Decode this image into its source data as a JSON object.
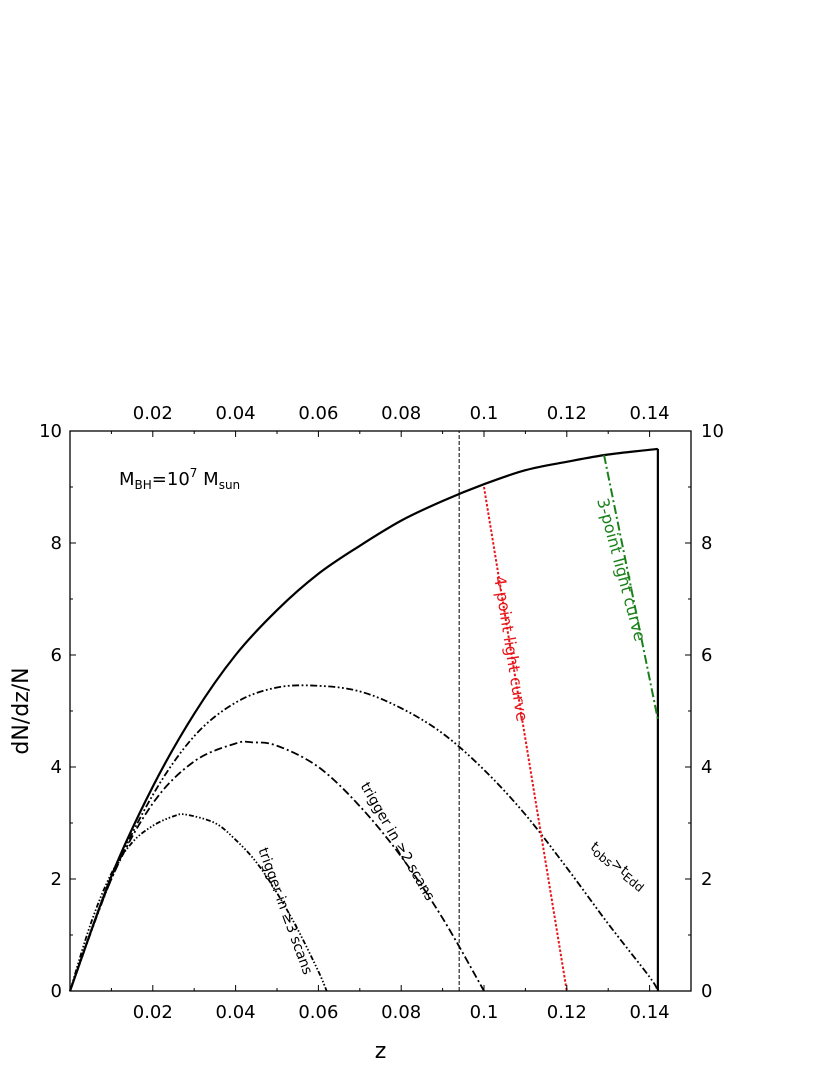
{
  "chart_data": {
    "type": "line",
    "title": "",
    "xlabel": "z",
    "ylabel": "dN/dz/N",
    "xlim": [
      0,
      0.15
    ],
    "ylim": [
      0,
      10
    ],
    "xticks": [
      0.02,
      0.04,
      0.06,
      0.08,
      0.1,
      0.12,
      0.14
    ],
    "xtick_labels": [
      "0.02",
      "0.04",
      "0.06",
      "0.08",
      "0.1",
      "0.12",
      "0.14"
    ],
    "yticks": [
      0,
      2,
      4,
      6,
      8,
      10
    ],
    "ytick_labels": [
      "0",
      "2",
      "4",
      "6",
      "8",
      "10"
    ],
    "top_xticks": [
      0.02,
      0.04,
      0.06,
      0.08,
      0.1,
      0.12,
      0.14
    ],
    "top_xtick_labels": [
      "0.02",
      "0.04",
      "0.06",
      "0.08",
      "0.1",
      "0.12",
      "0.14"
    ],
    "right_yticks": [
      0,
      2,
      4,
      6,
      8,
      10
    ],
    "right_ytick_labels": [
      "0",
      "2",
      "4",
      "6",
      "8",
      "10"
    ],
    "grid": false,
    "annotation_mass": {
      "base": "M",
      "sub1": "BH",
      "mid": "=10",
      "sup": "7",
      "space": " M",
      "sub2": "sun"
    },
    "annotation_tobs": {
      "t1": "t",
      "s1": "obs",
      "op": ">",
      "t2": "t",
      "s2": "Edd"
    },
    "series": [
      {
        "key": "total",
        "style": "solid",
        "color": "#000000",
        "x": [
          0,
          0.01,
          0.02,
          0.03,
          0.04,
          0.05,
          0.06,
          0.07,
          0.08,
          0.09,
          0.1,
          0.11,
          0.12,
          0.13,
          0.142
        ],
        "y": [
          0,
          2.05,
          3.65,
          4.95,
          6.0,
          6.8,
          7.45,
          7.95,
          8.4,
          8.75,
          9.05,
          9.3,
          9.45,
          9.58,
          9.68
        ]
      },
      {
        "key": "edge",
        "style": "solid",
        "color": "#000000",
        "x": [
          0.142,
          0.142
        ],
        "y": [
          9.68,
          0
        ]
      },
      {
        "key": "tobs",
        "style": "dashdotdot",
        "color": "#000000",
        "x": [
          0,
          0.01,
          0.02,
          0.03,
          0.04,
          0.05,
          0.06,
          0.07,
          0.08,
          0.09,
          0.1,
          0.11,
          0.12,
          0.13,
          0.14,
          0.142
        ],
        "y": [
          0,
          2.0,
          3.5,
          4.55,
          5.15,
          5.42,
          5.45,
          5.35,
          5.05,
          4.6,
          3.95,
          3.15,
          2.2,
          1.2,
          0.25,
          0
        ]
      },
      {
        "key": "ge2",
        "style": "dashdot",
        "color": "#000000",
        "x": [
          0,
          0.01,
          0.02,
          0.03,
          0.04,
          0.044,
          0.05,
          0.06,
          0.07,
          0.08,
          0.09,
          0.1
        ],
        "y": [
          0,
          2.0,
          3.35,
          4.1,
          4.42,
          4.44,
          4.38,
          4.0,
          3.3,
          2.4,
          1.3,
          0
        ]
      },
      {
        "key": "ge3",
        "style": "dashdotdotdot",
        "color": "#000000",
        "x": [
          0,
          0.005,
          0.01,
          0.015,
          0.02,
          0.025,
          0.028,
          0.035,
          0.04,
          0.045,
          0.05,
          0.055,
          0.06,
          0.062
        ],
        "y": [
          0,
          1.2,
          2.1,
          2.65,
          2.95,
          3.12,
          3.15,
          3.0,
          2.7,
          2.3,
          1.75,
          1.1,
          0.35,
          0
        ]
      },
      {
        "key": "point4",
        "style": "dotted",
        "color": "#e8161a",
        "x": [
          0.1,
          0.12
        ],
        "y": [
          9.0,
          0
        ]
      },
      {
        "key": "point3",
        "style": "longdashdot",
        "color": "#1a801a",
        "x": [
          0.129,
          0.142
        ],
        "y": [
          9.57,
          4.85
        ]
      },
      {
        "key": "vline",
        "style": "thin-dashed",
        "color": "#000000",
        "x": [
          0.094,
          0.094
        ],
        "y": [
          0,
          10
        ]
      }
    ],
    "annotations": [
      {
        "key": "ge3",
        "text": "trigger in ≥3 scans",
        "x": 0.051,
        "y": 1.4,
        "angle": 70
      },
      {
        "key": "ge2",
        "text": "trigger in ≥2 scans",
        "x": 0.0782,
        "y": 2.63,
        "angle": 60
      },
      {
        "key": "point4",
        "text": "4-point light curve",
        "x": 0.1052,
        "y": 6.1,
        "angle": 81
      },
      {
        "key": "point3",
        "text": "3-point light curve",
        "x": 0.1319,
        "y": 7.5,
        "angle": 75
      }
    ]
  }
}
